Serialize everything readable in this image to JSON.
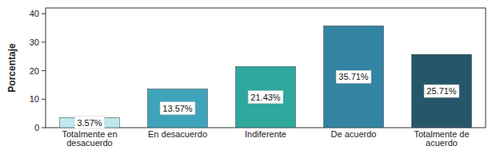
{
  "chart_data": {
    "type": "bar",
    "y_label": "Porcentaje",
    "categories": [
      "Totalmente en desacuerdo",
      "En desacuerdo",
      "Indiferente",
      "De acuerdo",
      "Totalmente de acuerdo"
    ],
    "values": [
      3.57,
      13.57,
      21.43,
      35.71,
      25.71
    ],
    "value_labels": [
      "3.57%",
      "13.57%",
      "21.43%",
      "35.71%",
      "25.71%"
    ],
    "colors": [
      "#bde8ec",
      "#3fa3ba",
      "#2ea79c",
      "#3383a3",
      "#26566a"
    ],
    "ylim": [
      0,
      42
    ],
    "yticks": [
      0,
      10,
      20,
      30,
      40
    ],
    "grid": false,
    "data_labels": true
  }
}
